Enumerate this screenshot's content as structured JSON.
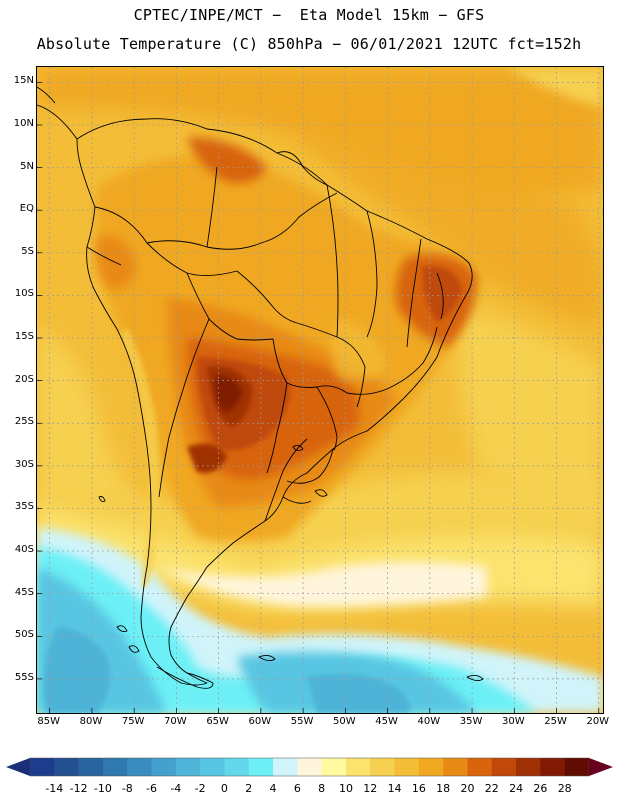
{
  "header": {
    "title_line1": "CPTEC/INPE/MCT −  Eta Model 15km − GFS",
    "title_line2": "Absolute Temperature (C) 850hPa − 06/01/2021 12UTC fct=152h"
  },
  "map": {
    "lat_labels": [
      "15N",
      "10N",
      "5N",
      "EQ",
      "5S",
      "10S",
      "15S",
      "20S",
      "25S",
      "30S",
      "35S",
      "40S",
      "45S",
      "50S",
      "55S"
    ],
    "lon_labels": [
      "85W",
      "80W",
      "75W",
      "70W",
      "65W",
      "60W",
      "55W",
      "50W",
      "45W",
      "40W",
      "35W",
      "30W",
      "25W",
      "20W"
    ],
    "lat_values": [
      15,
      10,
      5,
      0,
      -5,
      -10,
      -15,
      -20,
      -25,
      -30,
      -35,
      -40,
      -45,
      -50,
      -55
    ],
    "lon_values": [
      -85,
      -80,
      -75,
      -70,
      -65,
      -60,
      -55,
      -50,
      -45,
      -40,
      -35,
      -30,
      -25,
      -20
    ]
  },
  "colorbar": {
    "labels": [
      "-14",
      "-12",
      "-10",
      "-8",
      "-6",
      "-4",
      "-2",
      "0",
      "2",
      "4",
      "6",
      "8",
      "10",
      "12",
      "14",
      "16",
      "18",
      "20",
      "22",
      "24",
      "26",
      "28"
    ],
    "colors": [
      "#1e3c8c",
      "#23508f",
      "#2a64a0",
      "#2f78b0",
      "#3a8cc0",
      "#44a0cc",
      "#4eb4d8",
      "#58c6e2",
      "#62d8ea",
      "#6cf0f6",
      "#d0f4fa",
      "#fff5dc",
      "#fffaa0",
      "#fbe36e",
      "#f6d050",
      "#f3bd38",
      "#f0a820",
      "#e88a16",
      "#d8640c",
      "#c04808",
      "#a03006",
      "#801a04",
      "#600c02"
    ],
    "low_color": "#1a2f78",
    "high_color": "#6a0020"
  }
}
